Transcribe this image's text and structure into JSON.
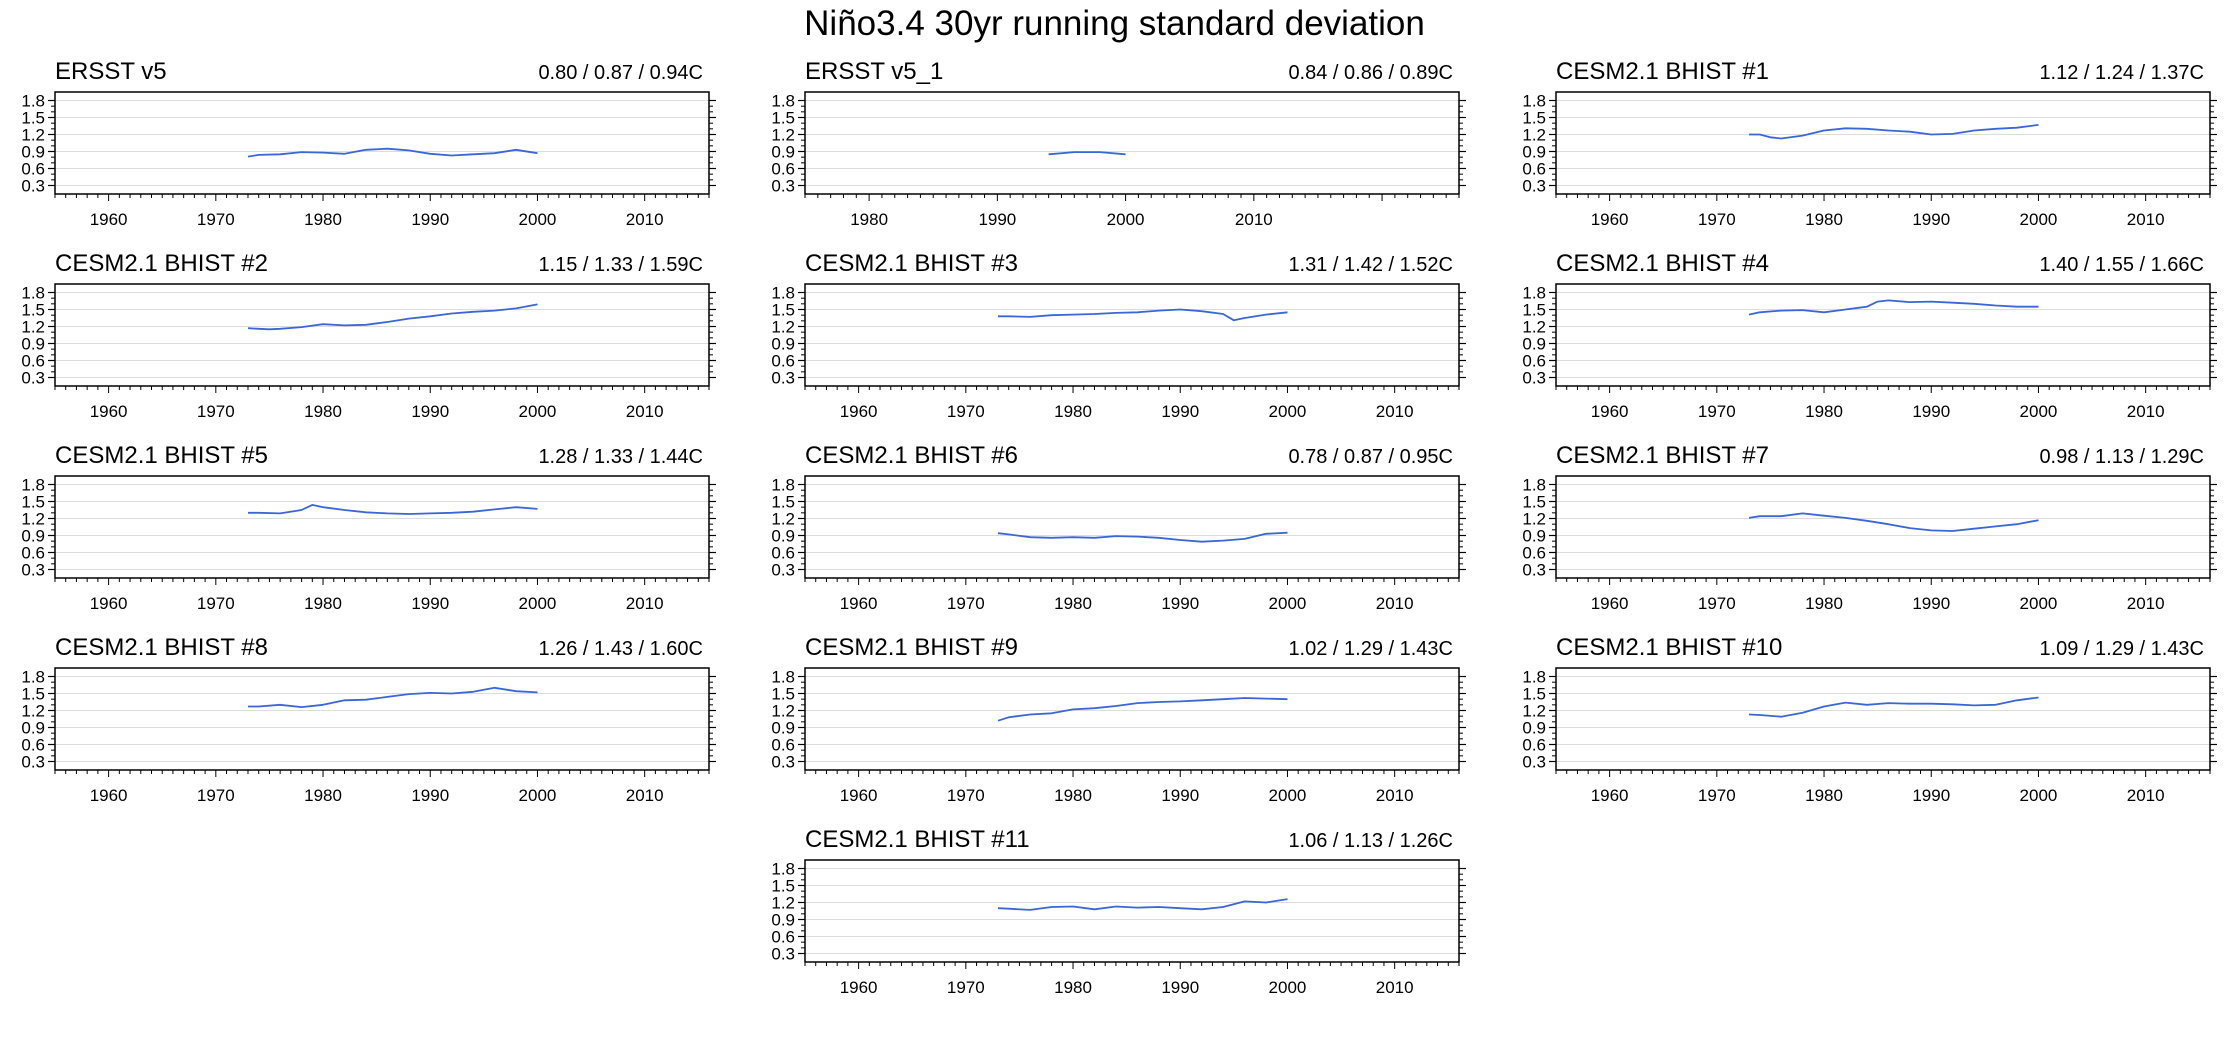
{
  "title": "Niño3.4 30yr running standard deviation",
  "colors": {
    "line": "#3a66d6",
    "grid": "#dcdcdc",
    "frame": "#000000"
  },
  "chart_data": [
    {
      "type": "line",
      "title": "ERSST v5",
      "stats": "0.80 / 0.87 / 0.94C",
      "xlim": [
        1955,
        2016
      ],
      "xticks": [
        1960,
        1970,
        1980,
        1990,
        2000,
        2010
      ],
      "ylim": [
        0.15,
        1.95
      ],
      "yticks": [
        "0.3",
        "0.6",
        "0.9",
        "1.2",
        "1.5",
        "1.8"
      ],
      "x": [
        1973,
        1974,
        1976,
        1978,
        1980,
        1982,
        1984,
        1986,
        1988,
        1990,
        1992,
        1994,
        1996,
        1998,
        2000
      ],
      "y": [
        0.81,
        0.84,
        0.85,
        0.89,
        0.88,
        0.86,
        0.93,
        0.95,
        0.92,
        0.86,
        0.83,
        0.85,
        0.87,
        0.93,
        0.87
      ]
    },
    {
      "type": "line",
      "title": "ERSST v5_1",
      "stats": "0.84 / 0.86 / 0.89C",
      "xlim": [
        1975,
        2026
      ],
      "xticks": [
        1980,
        1990,
        2000,
        2010
      ],
      "ylim": [
        0.15,
        1.95
      ],
      "yticks": [
        "0.3",
        "0.6",
        "0.9",
        "1.2",
        "1.5",
        "1.8"
      ],
      "x": [
        1994,
        1996,
        1998,
        2000
      ],
      "y": [
        0.85,
        0.89,
        0.89,
        0.85
      ]
    },
    {
      "type": "line",
      "title": "CESM2.1 BHIST #1",
      "stats": "1.12 / 1.24 / 1.37C",
      "xlim": [
        1955,
        2016
      ],
      "xticks": [
        1960,
        1970,
        1980,
        1990,
        2000,
        2010
      ],
      "ylim": [
        0.15,
        1.95
      ],
      "yticks": [
        "0.3",
        "0.6",
        "0.9",
        "1.2",
        "1.5",
        "1.8"
      ],
      "x": [
        1973,
        1974,
        1975,
        1976,
        1978,
        1980,
        1982,
        1984,
        1986,
        1988,
        1990,
        1992,
        1994,
        1996,
        1998,
        2000
      ],
      "y": [
        1.2,
        1.2,
        1.15,
        1.13,
        1.18,
        1.27,
        1.31,
        1.3,
        1.27,
        1.25,
        1.2,
        1.21,
        1.27,
        1.3,
        1.32,
        1.37
      ]
    },
    {
      "type": "line",
      "title": "CESM2.1 BHIST #2",
      "stats": "1.15 / 1.33 / 1.59C",
      "xlim": [
        1955,
        2016
      ],
      "xticks": [
        1960,
        1970,
        1980,
        1990,
        2000,
        2010
      ],
      "ylim": [
        0.15,
        1.95
      ],
      "yticks": [
        "0.3",
        "0.6",
        "0.9",
        "1.2",
        "1.5",
        "1.8"
      ],
      "x": [
        1973,
        1974,
        1975,
        1976,
        1978,
        1980,
        1982,
        1984,
        1986,
        1988,
        1990,
        1992,
        1994,
        1996,
        1998,
        2000
      ],
      "y": [
        1.17,
        1.16,
        1.15,
        1.16,
        1.19,
        1.24,
        1.22,
        1.23,
        1.28,
        1.34,
        1.38,
        1.43,
        1.46,
        1.48,
        1.52,
        1.59
      ]
    },
    {
      "type": "line",
      "title": "CESM2.1 BHIST #3",
      "stats": "1.31 / 1.42 / 1.52C",
      "xlim": [
        1955,
        2016
      ],
      "xticks": [
        1960,
        1970,
        1980,
        1990,
        2000,
        2010
      ],
      "ylim": [
        0.15,
        1.95
      ],
      "yticks": [
        "0.3",
        "0.6",
        "0.9",
        "1.2",
        "1.5",
        "1.8"
      ],
      "x": [
        1973,
        1974,
        1976,
        1978,
        1980,
        1982,
        1984,
        1986,
        1988,
        1990,
        1992,
        1994,
        1995,
        1996,
        1998,
        2000
      ],
      "y": [
        1.38,
        1.38,
        1.37,
        1.4,
        1.41,
        1.42,
        1.44,
        1.45,
        1.48,
        1.5,
        1.47,
        1.42,
        1.31,
        1.35,
        1.41,
        1.45
      ]
    },
    {
      "type": "line",
      "title": "CESM2.1 BHIST #4",
      "stats": "1.40 / 1.55 / 1.66C",
      "xlim": [
        1955,
        2016
      ],
      "xticks": [
        1960,
        1970,
        1980,
        1990,
        2000,
        2010
      ],
      "ylim": [
        0.15,
        1.95
      ],
      "yticks": [
        "0.3",
        "0.6",
        "0.9",
        "1.2",
        "1.5",
        "1.8"
      ],
      "x": [
        1973,
        1974,
        1976,
        1978,
        1980,
        1982,
        1984,
        1985,
        1986,
        1988,
        1990,
        1992,
        1994,
        1996,
        1998,
        2000
      ],
      "y": [
        1.41,
        1.45,
        1.48,
        1.49,
        1.45,
        1.5,
        1.55,
        1.64,
        1.66,
        1.63,
        1.64,
        1.62,
        1.6,
        1.57,
        1.55,
        1.55
      ]
    },
    {
      "type": "line",
      "title": "CESM2.1 BHIST #5",
      "stats": "1.28 / 1.33 / 1.44C",
      "xlim": [
        1955,
        2016
      ],
      "xticks": [
        1960,
        1970,
        1980,
        1990,
        2000,
        2010
      ],
      "ylim": [
        0.15,
        1.95
      ],
      "yticks": [
        "0.3",
        "0.6",
        "0.9",
        "1.2",
        "1.5",
        "1.8"
      ],
      "x": [
        1973,
        1974,
        1976,
        1978,
        1979,
        1980,
        1982,
        1984,
        1986,
        1988,
        1990,
        1992,
        1994,
        1996,
        1998,
        2000
      ],
      "y": [
        1.3,
        1.3,
        1.29,
        1.35,
        1.44,
        1.4,
        1.35,
        1.31,
        1.29,
        1.28,
        1.29,
        1.3,
        1.32,
        1.36,
        1.4,
        1.37
      ]
    },
    {
      "type": "line",
      "title": "CESM2.1 BHIST #6",
      "stats": "0.78 / 0.87 / 0.95C",
      "xlim": [
        1955,
        2016
      ],
      "xticks": [
        1960,
        1970,
        1980,
        1990,
        2000,
        2010
      ],
      "ylim": [
        0.15,
        1.95
      ],
      "yticks": [
        "0.3",
        "0.6",
        "0.9",
        "1.2",
        "1.5",
        "1.8"
      ],
      "x": [
        1973,
        1974,
        1976,
        1978,
        1980,
        1982,
        1984,
        1986,
        1988,
        1990,
        1992,
        1994,
        1996,
        1998,
        2000
      ],
      "y": [
        0.94,
        0.92,
        0.87,
        0.86,
        0.87,
        0.86,
        0.89,
        0.88,
        0.86,
        0.82,
        0.79,
        0.81,
        0.84,
        0.93,
        0.95
      ]
    },
    {
      "type": "line",
      "title": "CESM2.1 BHIST #7",
      "stats": "0.98 / 1.13 / 1.29C",
      "xlim": [
        1955,
        2016
      ],
      "xticks": [
        1960,
        1970,
        1980,
        1990,
        2000,
        2010
      ],
      "ylim": [
        0.15,
        1.95
      ],
      "yticks": [
        "0.3",
        "0.6",
        "0.9",
        "1.2",
        "1.5",
        "1.8"
      ],
      "x": [
        1973,
        1974,
        1976,
        1978,
        1980,
        1982,
        1984,
        1986,
        1988,
        1990,
        1992,
        1994,
        1996,
        1998,
        2000
      ],
      "y": [
        1.21,
        1.24,
        1.24,
        1.29,
        1.25,
        1.21,
        1.16,
        1.1,
        1.03,
        0.99,
        0.98,
        1.02,
        1.06,
        1.1,
        1.17
      ]
    },
    {
      "type": "line",
      "title": "CESM2.1 BHIST #8",
      "stats": "1.26 / 1.43 / 1.60C",
      "xlim": [
        1955,
        2016
      ],
      "xticks": [
        1960,
        1970,
        1980,
        1990,
        2000,
        2010
      ],
      "ylim": [
        0.15,
        1.95
      ],
      "yticks": [
        "0.3",
        "0.6",
        "0.9",
        "1.2",
        "1.5",
        "1.8"
      ],
      "x": [
        1973,
        1974,
        1976,
        1978,
        1980,
        1982,
        1984,
        1986,
        1988,
        1990,
        1992,
        1994,
        1996,
        1998,
        2000
      ],
      "y": [
        1.27,
        1.27,
        1.3,
        1.26,
        1.3,
        1.38,
        1.39,
        1.44,
        1.49,
        1.51,
        1.5,
        1.53,
        1.6,
        1.54,
        1.52
      ]
    },
    {
      "type": "line",
      "title": "CESM2.1 BHIST #9",
      "stats": "1.02 / 1.29 / 1.43C",
      "xlim": [
        1955,
        2016
      ],
      "xticks": [
        1960,
        1970,
        1980,
        1990,
        2000,
        2010
      ],
      "ylim": [
        0.15,
        1.95
      ],
      "yticks": [
        "0.3",
        "0.6",
        "0.9",
        "1.2",
        "1.5",
        "1.8"
      ],
      "x": [
        1973,
        1974,
        1976,
        1978,
        1980,
        1982,
        1984,
        1986,
        1988,
        1990,
        1992,
        1994,
        1996,
        1998,
        2000
      ],
      "y": [
        1.02,
        1.08,
        1.13,
        1.15,
        1.22,
        1.24,
        1.28,
        1.33,
        1.35,
        1.36,
        1.38,
        1.4,
        1.42,
        1.41,
        1.4
      ]
    },
    {
      "type": "line",
      "title": "CESM2.1 BHIST #10",
      "stats": "1.09 / 1.29 / 1.43C",
      "xlim": [
        1955,
        2016
      ],
      "xticks": [
        1960,
        1970,
        1980,
        1990,
        2000,
        2010
      ],
      "ylim": [
        0.15,
        1.95
      ],
      "yticks": [
        "0.3",
        "0.6",
        "0.9",
        "1.2",
        "1.5",
        "1.8"
      ],
      "x": [
        1973,
        1974,
        1976,
        1978,
        1980,
        1982,
        1984,
        1986,
        1988,
        1990,
        1992,
        1994,
        1996,
        1998,
        2000
      ],
      "y": [
        1.13,
        1.12,
        1.09,
        1.16,
        1.27,
        1.34,
        1.3,
        1.33,
        1.32,
        1.32,
        1.31,
        1.29,
        1.3,
        1.38,
        1.43
      ]
    },
    {
      "type": "line",
      "title": "CESM2.1 BHIST #11",
      "stats": "1.06 / 1.13 / 1.26C",
      "xlim": [
        1955,
        2016
      ],
      "xticks": [
        1960,
        1970,
        1980,
        1990,
        2000,
        2010
      ],
      "ylim": [
        0.15,
        1.95
      ],
      "yticks": [
        "0.3",
        "0.6",
        "0.9",
        "1.2",
        "1.5",
        "1.8"
      ],
      "x": [
        1973,
        1974,
        1976,
        1978,
        1980,
        1982,
        1984,
        1986,
        1988,
        1990,
        1992,
        1994,
        1996,
        1998,
        2000
      ],
      "y": [
        1.1,
        1.09,
        1.07,
        1.12,
        1.13,
        1.08,
        1.13,
        1.11,
        1.12,
        1.1,
        1.08,
        1.12,
        1.22,
        1.2,
        1.26
      ]
    }
  ]
}
